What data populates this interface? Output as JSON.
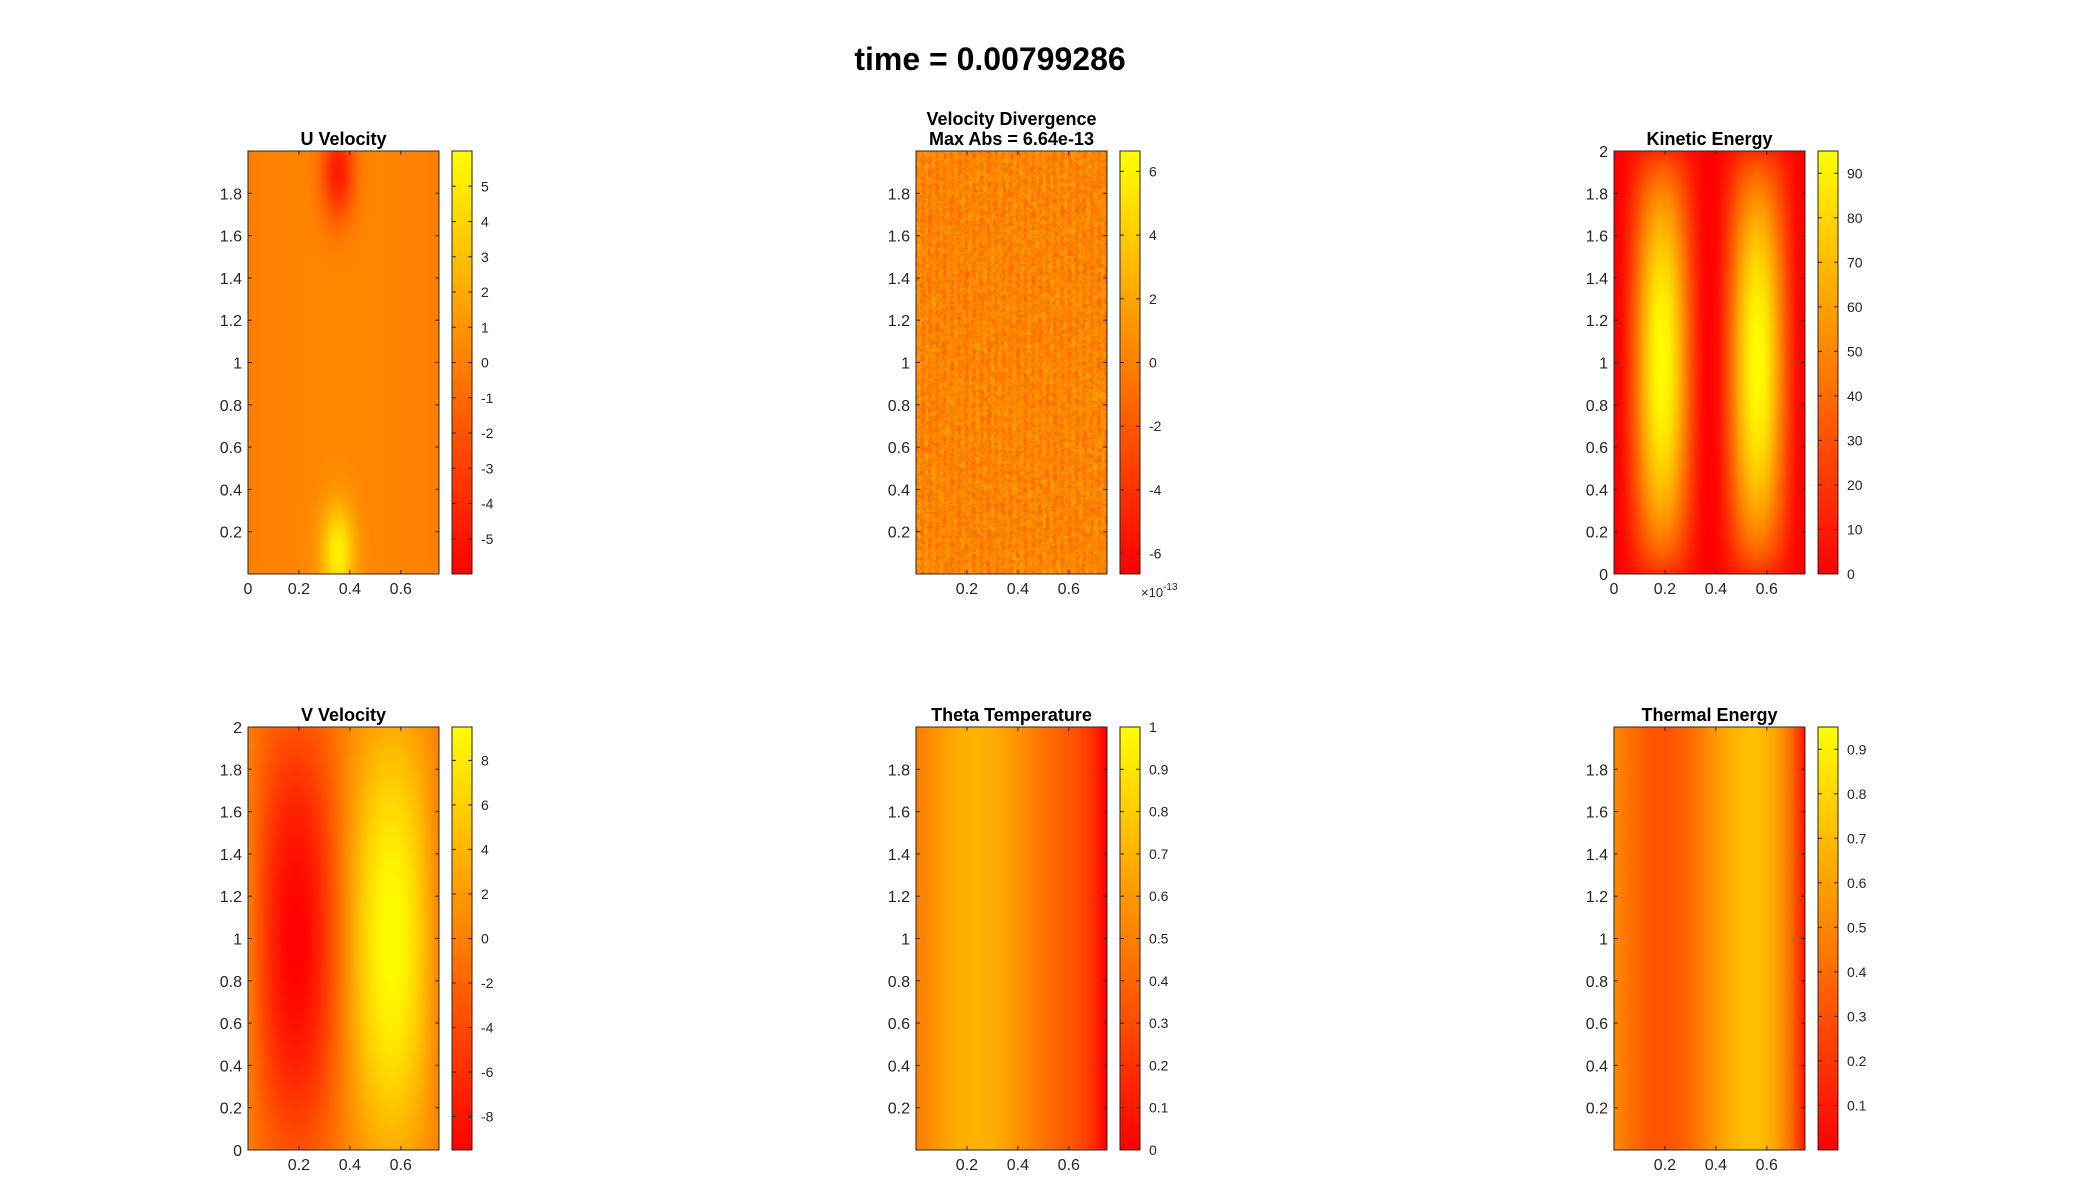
{
  "figure_title": "time = 0.00799286",
  "colormap": {
    "low": "#ff0000",
    "high": "#ffff00"
  },
  "chart_data": [
    {
      "type": "heatmap",
      "title": "U Velocity",
      "field": "u",
      "xlim": [
        0,
        0.75
      ],
      "ylim": [
        0,
        2
      ],
      "xticks": [
        0,
        0.2,
        0.4,
        0.6
      ],
      "xticklabels": [
        "0",
        "0.2",
        "0.4",
        "0.6"
      ],
      "yticks": [
        0.2,
        0.4,
        0.6,
        0.8,
        1,
        1.2,
        1.4,
        1.6,
        1.8
      ],
      "yticklabels": [
        "0.2",
        "0.4",
        "0.6",
        "0.8",
        "1",
        "1.2",
        "1.4",
        "1.6",
        "1.8"
      ],
      "clim": [
        -6,
        6
      ],
      "cticks": [
        -5,
        -4,
        -3,
        -2,
        -1,
        0,
        1,
        2,
        3,
        4,
        5
      ],
      "cticklabels": [
        "-5",
        "-4",
        "-3",
        "-2",
        "-1",
        "0",
        "1",
        "2",
        "3",
        "4",
        "5"
      ]
    },
    {
      "type": "heatmap",
      "title": "Velocity Divergence",
      "subtitle": "Max Abs = 6.64e-13",
      "field": "div",
      "xlim": [
        0,
        0.75
      ],
      "ylim": [
        0,
        2
      ],
      "xticks": [
        0.2,
        0.4,
        0.6
      ],
      "xticklabels": [
        "0.2",
        "0.4",
        "0.6"
      ],
      "yticks": [
        0.2,
        0.4,
        0.6,
        0.8,
        1,
        1.2,
        1.4,
        1.6,
        1.8
      ],
      "yticklabels": [
        "0.2",
        "0.4",
        "0.6",
        "0.8",
        "1",
        "1.2",
        "1.4",
        "1.6",
        "1.8"
      ],
      "clim": [
        -6.64,
        6.64
      ],
      "cticks": [
        -6,
        -4,
        -2,
        0,
        2,
        4,
        6
      ],
      "cticklabels": [
        "-6",
        "-4",
        "-2",
        "0",
        "2",
        "4",
        "6"
      ],
      "exponent_base": "×10",
      "exponent_power": "-13"
    },
    {
      "type": "heatmap",
      "title": "Kinetic Energy",
      "field": "ke",
      "xlim": [
        0,
        0.75
      ],
      "ylim": [
        0,
        2
      ],
      "xticks": [
        0,
        0.2,
        0.4,
        0.6
      ],
      "xticklabels": [
        "0",
        "0.2",
        "0.4",
        "0.6"
      ],
      "yticks": [
        0,
        0.2,
        0.4,
        0.6,
        0.8,
        1,
        1.2,
        1.4,
        1.6,
        1.8,
        2
      ],
      "yticklabels": [
        "0",
        "0.2",
        "0.4",
        "0.6",
        "0.8",
        "1",
        "1.2",
        "1.4",
        "1.6",
        "1.8",
        "2"
      ],
      "clim": [
        0,
        95
      ],
      "cticks": [
        0,
        10,
        20,
        30,
        40,
        50,
        60,
        70,
        80,
        90
      ],
      "cticklabels": [
        "0",
        "10",
        "20",
        "30",
        "40",
        "50",
        "60",
        "70",
        "80",
        "90"
      ]
    },
    {
      "type": "heatmap",
      "title": "V Velocity",
      "field": "v",
      "xlim": [
        0,
        0.75
      ],
      "ylim": [
        0,
        2
      ],
      "xticks": [
        0.2,
        0.4,
        0.6
      ],
      "xticklabels": [
        "0.2",
        "0.4",
        "0.6"
      ],
      "yticks": [
        0,
        0.2,
        0.4,
        0.6,
        0.8,
        1,
        1.2,
        1.4,
        1.6,
        1.8,
        2
      ],
      "yticklabels": [
        "0",
        "0.2",
        "0.4",
        "0.6",
        "0.8",
        "1",
        "1.2",
        "1.4",
        "1.6",
        "1.8",
        "2"
      ],
      "clim": [
        -9.5,
        9.5
      ],
      "cticks": [
        -8,
        -6,
        -4,
        -2,
        0,
        2,
        4,
        6,
        8
      ],
      "cticklabels": [
        "-8",
        "-6",
        "-4",
        "-2",
        "0",
        "2",
        "4",
        "6",
        "8"
      ]
    },
    {
      "type": "heatmap",
      "title": "Theta Temperature",
      "field": "theta",
      "xlim": [
        0,
        0.75
      ],
      "ylim": [
        0,
        2
      ],
      "xticks": [
        0.2,
        0.4,
        0.6
      ],
      "xticklabels": [
        "0.2",
        "0.4",
        "0.6"
      ],
      "yticks": [
        0.2,
        0.4,
        0.6,
        0.8,
        1,
        1.2,
        1.4,
        1.6,
        1.8
      ],
      "yticklabels": [
        "0.2",
        "0.4",
        "0.6",
        "0.8",
        "1",
        "1.2",
        "1.4",
        "1.6",
        "1.8"
      ],
      "clim": [
        0,
        1
      ],
      "cticks": [
        0,
        0.1,
        0.2,
        0.3,
        0.4,
        0.5,
        0.6,
        0.7,
        0.8,
        0.9,
        1
      ],
      "cticklabels": [
        "0",
        "0.1",
        "0.2",
        "0.3",
        "0.4",
        "0.5",
        "0.6",
        "0.7",
        "0.8",
        "0.9",
        "1"
      ]
    },
    {
      "type": "heatmap",
      "title": "Thermal Energy",
      "field": "thermal",
      "xlim": [
        0,
        0.75
      ],
      "ylim": [
        0,
        2
      ],
      "xticks": [
        0.2,
        0.4,
        0.6
      ],
      "xticklabels": [
        "0.2",
        "0.4",
        "0.6"
      ],
      "yticks": [
        0.2,
        0.4,
        0.6,
        0.8,
        1,
        1.2,
        1.4,
        1.6,
        1.8
      ],
      "yticklabels": [
        "0.2",
        "0.4",
        "0.6",
        "0.8",
        "1",
        "1.2",
        "1.4",
        "1.6",
        "1.8"
      ],
      "clim": [
        0,
        0.95
      ],
      "cticks": [
        0.1,
        0.2,
        0.3,
        0.4,
        0.5,
        0.6,
        0.7,
        0.8,
        0.9
      ],
      "cticklabels": [
        "0.1",
        "0.2",
        "0.3",
        "0.4",
        "0.5",
        "0.6",
        "0.7",
        "0.8",
        "0.9"
      ]
    }
  ]
}
